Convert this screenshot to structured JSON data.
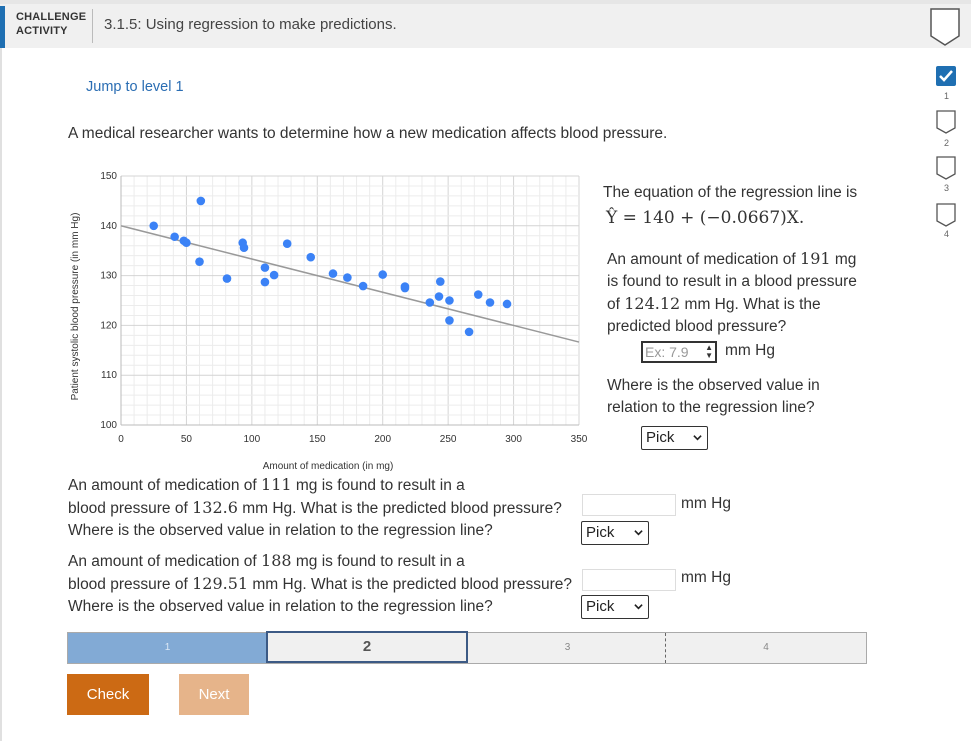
{
  "header": {
    "activity_label_line1": "CHALLENGE",
    "activity_label_line2": "ACTIVITY",
    "title": "3.1.5: Using regression to make predictions."
  },
  "jump_link": "Jump to level 1",
  "levels": [
    {
      "number": "1",
      "state": "completed"
    },
    {
      "number": "2",
      "state": "current"
    },
    {
      "number": "3",
      "state": "locked"
    },
    {
      "number": "4",
      "state": "locked"
    }
  ],
  "intro": "A medical researcher wants to determine how a new medication affects blood pressure.",
  "chart_data": {
    "type": "scatter",
    "xlabel": "Amount of medication (in mg)",
    "ylabel": "Patient systolic blood pressure (in mm Hg)",
    "xlim": [
      0,
      350
    ],
    "ylim": [
      100,
      150
    ],
    "x_ticks": [
      "0",
      "50",
      "100",
      "150",
      "200",
      "250",
      "300",
      "350"
    ],
    "y_ticks": [
      "100",
      "110",
      "120",
      "130",
      "140",
      "150"
    ],
    "grid": true,
    "points": [
      {
        "x": 25,
        "y": 140
      },
      {
        "x": 41,
        "y": 137.8
      },
      {
        "x": 48,
        "y": 137
      },
      {
        "x": 50,
        "y": 136.6
      },
      {
        "x": 60,
        "y": 132.8
      },
      {
        "x": 61,
        "y": 145
      },
      {
        "x": 81,
        "y": 129.4
      },
      {
        "x": 93,
        "y": 136.6
      },
      {
        "x": 94,
        "y": 135.6
      },
      {
        "x": 110,
        "y": 131.6
      },
      {
        "x": 110,
        "y": 128.7
      },
      {
        "x": 117,
        "y": 130.1
      },
      {
        "x": 127,
        "y": 136.4
      },
      {
        "x": 145,
        "y": 133.7
      },
      {
        "x": 162,
        "y": 130.4
      },
      {
        "x": 173,
        "y": 129.6
      },
      {
        "x": 185,
        "y": 127.9
      },
      {
        "x": 200,
        "y": 130.2
      },
      {
        "x": 217,
        "y": 127.8
      },
      {
        "x": 217,
        "y": 127.5
      },
      {
        "x": 236,
        "y": 124.6
      },
      {
        "x": 243,
        "y": 125.8
      },
      {
        "x": 244,
        "y": 128.8
      },
      {
        "x": 251,
        "y": 125
      },
      {
        "x": 251,
        "y": 121
      },
      {
        "x": 266,
        "y": 118.7
      },
      {
        "x": 273,
        "y": 126.2
      },
      {
        "x": 282,
        "y": 124.6
      },
      {
        "x": 295,
        "y": 124.3
      }
    ],
    "regression_line": {
      "intercept": 140,
      "slope": -0.0667
    },
    "colors": {
      "points": "#3b82f6",
      "line": "#999999",
      "grid": "#e5e5e5"
    }
  },
  "equation": {
    "text": "The equation of the regression line is",
    "formula_lhs": "Ŷ",
    "formula_rhs": "= 140 + (−0.0667)X."
  },
  "q1": {
    "line1_a": "An amount of medication of",
    "line1_num": "191",
    "line1_b": "mg",
    "line2": "is found to result in a blood pressure",
    "line3_a": "of",
    "line3_num": "124.12",
    "line3_b": "mm Hg. What is the",
    "line4": "predicted blood pressure?",
    "input_placeholder": "Ex: 7.9",
    "unit": "mm Hg",
    "where_line1": "Where is the observed value in",
    "where_line2": "relation to the regression line?",
    "select_value": "Pick"
  },
  "q2": {
    "line1_a": "An amount of medication of",
    "line1_num": "111",
    "line1_b": "mg is found to result in a",
    "line2_a": "blood pressure of",
    "line2_num": "132.6",
    "line2_b": "mm Hg. What is the predicted blood pressure?",
    "where": "Where is the observed value in relation to the regression line?",
    "unit": "mm Hg",
    "select_value": "Pick"
  },
  "q3": {
    "line1_a": "An amount of medication of",
    "line1_num": "188",
    "line1_b": "mg is found to result in a",
    "line2_a": "blood pressure of",
    "line2_num": "129.51",
    "line2_b": "mm Hg. What is the predicted blood pressure?",
    "where": "Where is the observed value in relation to the regression line?",
    "unit": "mm Hg",
    "select_value": "Pick"
  },
  "progress": {
    "segments": [
      "1",
      "2",
      "3",
      "4"
    ],
    "colors": {
      "done": "#82aad5",
      "current_border": "#3c5a85"
    }
  },
  "buttons": {
    "check": "Check",
    "next": "Next",
    "check_color": "#cc6a14",
    "next_color": "#e6b48a"
  }
}
